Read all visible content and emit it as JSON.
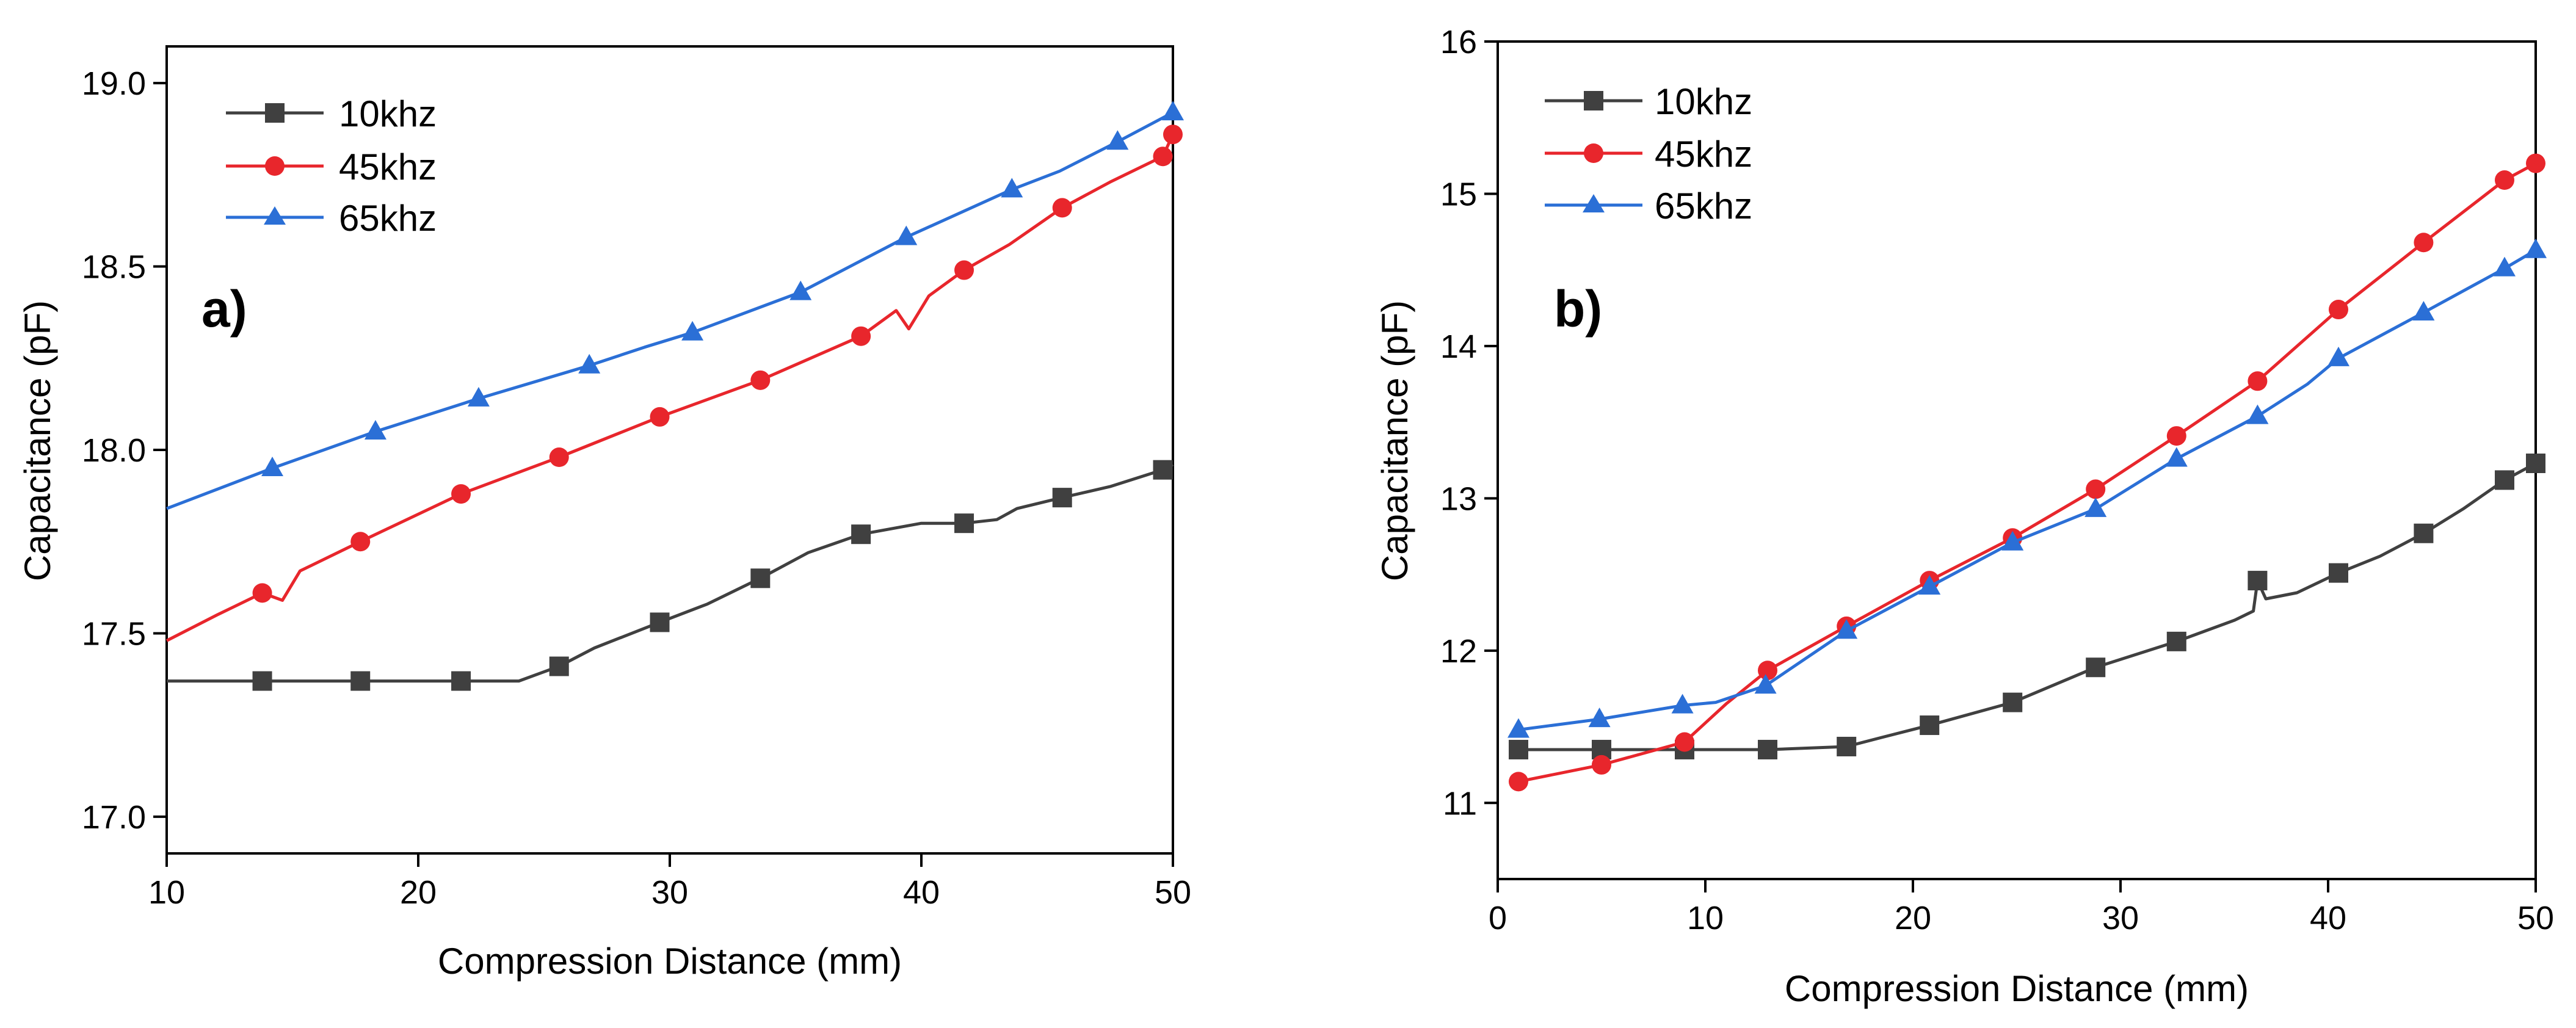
{
  "chart_data": [
    {
      "type": "line",
      "panel_label": "a)",
      "xlabel": "Compression Distance (mm)",
      "ylabel": "Capacitance (pF)",
      "xlim": [
        10,
        50
      ],
      "ylim": [
        16.9,
        19.1
      ],
      "xticks": [
        10,
        20,
        30,
        40,
        50
      ],
      "yticks": [
        17.0,
        17.5,
        18.0,
        18.5,
        19.0
      ],
      "ytick_labels": [
        "17.0",
        "17.5",
        "18.0",
        "18.5",
        "19.0"
      ],
      "legend_position": "top-left",
      "series": [
        {
          "name": "10khz",
          "color": "#404040",
          "marker": "square",
          "x": [
            10,
            13.8,
            17.7,
            21.7,
            24.0,
            25.6,
            27.0,
            29.6,
            31.5,
            33.6,
            35.5,
            37.6,
            40.0,
            41.7,
            43.0,
            43.8,
            45.6,
            47.5,
            49.8,
            50
          ],
          "y": [
            17.37,
            17.37,
            17.37,
            17.37,
            17.37,
            17.41,
            17.46,
            17.53,
            17.58,
            17.65,
            17.72,
            17.77,
            17.8,
            17.8,
            17.81,
            17.84,
            17.87,
            17.9,
            17.95,
            17.96
          ],
          "marker_x": [
            13.8,
            17.7,
            21.7,
            25.6,
            29.6,
            33.6,
            37.6,
            41.7,
            45.6,
            49.6
          ]
        },
        {
          "name": "45khz",
          "color": "#e8262c",
          "marker": "circle",
          "x": [
            10,
            12.0,
            13.8,
            14.6,
            15.3,
            17.7,
            21.7,
            25.6,
            29.6,
            33.6,
            37.6,
            39.0,
            39.5,
            40.3,
            41.7,
            43.5,
            45.6,
            47.5,
            49.6,
            50
          ],
          "y": [
            17.48,
            17.55,
            17.61,
            17.59,
            17.67,
            17.75,
            17.88,
            17.98,
            18.09,
            18.19,
            18.31,
            18.38,
            18.33,
            18.42,
            18.49,
            18.56,
            18.66,
            18.73,
            18.8,
            18.86
          ],
          "marker_x": [
            13.8,
            17.7,
            21.7,
            25.6,
            29.6,
            33.6,
            37.6,
            41.7,
            45.6,
            49.6,
            50
          ]
        },
        {
          "name": "65khz",
          "color": "#2b6fd6",
          "marker": "triangle",
          "x": [
            10,
            14.2,
            18.3,
            22.4,
            26.8,
            29.0,
            30.9,
            35.2,
            39.4,
            43.6,
            45.5,
            47.8,
            50
          ],
          "y": [
            17.84,
            17.95,
            18.05,
            18.14,
            18.23,
            18.28,
            18.32,
            18.43,
            18.58,
            18.71,
            18.76,
            18.84,
            18.92
          ],
          "marker_x": [
            14.2,
            18.3,
            22.4,
            26.8,
            30.9,
            35.2,
            39.4,
            43.6,
            47.8,
            50
          ]
        }
      ]
    },
    {
      "type": "line",
      "panel_label": "b)",
      "xlabel": "Compression Distance (mm)",
      "ylabel": "Capacitance (pF)",
      "xlim": [
        0,
        50
      ],
      "ylim": [
        10.5,
        16
      ],
      "xticks": [
        0,
        10,
        20,
        30,
        40,
        50
      ],
      "yticks": [
        11,
        12,
        13,
        14,
        15,
        16
      ],
      "ytick_labels": [
        "11",
        "12",
        "13",
        "14",
        "15",
        "16"
      ],
      "legend_position": "top-left",
      "series": [
        {
          "name": "10khz",
          "color": "#404040",
          "marker": "square",
          "x": [
            1,
            5,
            9,
            13,
            16.8,
            18.5,
            20.8,
            24.8,
            28.8,
            32.7,
            35.5,
            36.4,
            36.6,
            37.0,
            38.5,
            40.5,
            42.5,
            44.6,
            46.5,
            48.5,
            50
          ],
          "y": [
            11.35,
            11.35,
            11.35,
            11.35,
            11.37,
            11.43,
            11.51,
            11.66,
            11.89,
            12.06,
            12.2,
            12.26,
            12.46,
            12.34,
            12.38,
            12.51,
            12.62,
            12.77,
            12.93,
            13.12,
            13.23
          ],
          "marker_x": [
            1,
            5,
            9,
            13,
            16.8,
            20.8,
            24.8,
            28.8,
            32.7,
            36.6,
            40.5,
            44.6,
            48.5,
            50
          ]
        },
        {
          "name": "45khz",
          "color": "#e8262c",
          "marker": "circle",
          "x": [
            1,
            5,
            9,
            11,
            13,
            16.8,
            20.8,
            24.8,
            28.8,
            32.7,
            36.6,
            40.5,
            44.6,
            48.5,
            50
          ],
          "y": [
            11.14,
            11.25,
            11.4,
            11.65,
            11.87,
            12.16,
            12.46,
            12.74,
            13.06,
            13.41,
            13.77,
            14.24,
            14.68,
            15.09,
            15.2
          ],
          "marker_x": [
            1,
            5,
            9,
            13,
            16.8,
            20.8,
            24.8,
            28.8,
            32.7,
            36.6,
            40.5,
            44.6,
            48.5,
            50
          ]
        },
        {
          "name": "65khz",
          "color": "#2b6fd6",
          "marker": "triangle",
          "x": [
            1,
            4.9,
            8.9,
            10.5,
            12.9,
            16.8,
            20.8,
            24.8,
            28.8,
            32.7,
            36.6,
            39.0,
            40.5,
            44.6,
            48.5,
            50
          ],
          "y": [
            11.48,
            11.55,
            11.64,
            11.66,
            11.77,
            12.13,
            12.42,
            12.71,
            12.93,
            13.26,
            13.54,
            13.75,
            13.92,
            14.22,
            14.51,
            14.63
          ],
          "marker_x": [
            1,
            4.9,
            8.9,
            12.9,
            16.8,
            20.8,
            24.8,
            28.8,
            32.7,
            36.6,
            40.5,
            44.6,
            48.5,
            50
          ]
        }
      ]
    }
  ]
}
